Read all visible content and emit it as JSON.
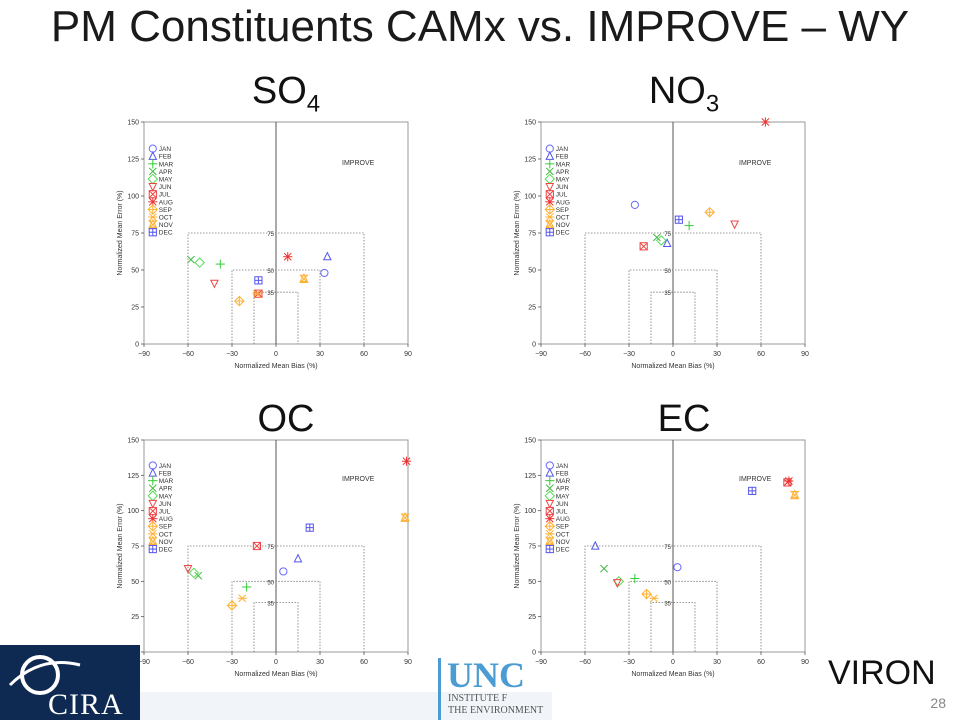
{
  "slide": {
    "title": "PM Constituents CAMx vs. IMPROVE – WY",
    "page_number": "28",
    "logos": {
      "cira": "CIRA",
      "unc": "UNC",
      "unc_sub1": "INSTITUTE F",
      "unc_sub2": "THE ENVIRONMENT",
      "environ": "VIRON"
    }
  },
  "months": [
    "JAN",
    "FEB",
    "MAR",
    "APR",
    "MAY",
    "JUN",
    "JUL",
    "AUG",
    "SEP",
    "OCT",
    "NOV",
    "DEC"
  ],
  "month_styles": [
    {
      "marker": "circle",
      "color": "#6a6aff"
    },
    {
      "marker": "triangle-up",
      "color": "#5555ee"
    },
    {
      "marker": "plus",
      "color": "#33cc33"
    },
    {
      "marker": "x",
      "color": "#44bb44"
    },
    {
      "marker": "diamond",
      "color": "#55dd55"
    },
    {
      "marker": "triangle-down",
      "color": "#ee4444"
    },
    {
      "marker": "boxed-x",
      "color": "#ee4444"
    },
    {
      "marker": "asterisk",
      "color": "#ee3333"
    },
    {
      "marker": "diamond-plus",
      "color": "#ffb030"
    },
    {
      "marker": "star",
      "color": "#ffb030"
    },
    {
      "marker": "hourglass",
      "color": "#ffb030"
    },
    {
      "marker": "boxed-plus",
      "color": "#5555ee"
    }
  ],
  "axis_text": {
    "xlabel": "Normalized Mean Bias (%)",
    "ylabel": "Normalized Mean Error (%)",
    "network": "IMPROVE",
    "xticks": [
      "−90",
      "−60",
      "−30",
      "0",
      "30",
      "60",
      "90"
    ],
    "yticks": [
      "0",
      "25",
      "50",
      "75",
      "100",
      "125",
      "150"
    ],
    "box_labels": [
      "75",
      "50",
      "35"
    ]
  },
  "chart_data": [
    {
      "type": "scatter",
      "panel_title": "SO4",
      "xlim": [
        -90,
        90
      ],
      "ylim": [
        0,
        150
      ],
      "xlabel": "Normalized Mean Bias (%)",
      "ylabel": "Normalized Mean Error (%)",
      "points": [
        {
          "month": "JAN",
          "x": 33,
          "y": 48
        },
        {
          "month": "FEB",
          "x": 35,
          "y": 59
        },
        {
          "month": "MAR",
          "x": -38,
          "y": 54
        },
        {
          "month": "APR",
          "x": -58,
          "y": 57
        },
        {
          "month": "MAY",
          "x": -52,
          "y": 55
        },
        {
          "month": "JUN",
          "x": -42,
          "y": 41
        },
        {
          "month": "JUL",
          "x": -12,
          "y": 34
        },
        {
          "month": "AUG",
          "x": 8,
          "y": 59
        },
        {
          "month": "SEP",
          "x": -25,
          "y": 29
        },
        {
          "month": "OCT",
          "x": -13,
          "y": 34
        },
        {
          "month": "NOV",
          "x": 19,
          "y": 44
        },
        {
          "month": "DEC",
          "x": -12,
          "y": 43
        }
      ]
    },
    {
      "type": "scatter",
      "panel_title": "NO3",
      "xlim": [
        -90,
        90
      ],
      "ylim": [
        0,
        150
      ],
      "xlabel": "Normalized Mean Bias (%)",
      "ylabel": "Normalized Mean Error (%)",
      "points": [
        {
          "month": "JAN",
          "x": -26,
          "y": 94
        },
        {
          "month": "FEB",
          "x": -4,
          "y": 68
        },
        {
          "month": "MAR",
          "x": 11,
          "y": 80
        },
        {
          "month": "APR",
          "x": -11,
          "y": 72
        },
        {
          "month": "MAY",
          "x": -8,
          "y": 70
        },
        {
          "month": "JUN",
          "x": 42,
          "y": 81
        },
        {
          "month": "JUL",
          "x": -20,
          "y": 66
        },
        {
          "month": "AUG",
          "x": 63,
          "y": 150
        },
        {
          "month": "SEP",
          "x": 25,
          "y": 89
        },
        {
          "month": "DEC",
          "x": 4,
          "y": 84
        }
      ]
    },
    {
      "type": "scatter",
      "panel_title": "OC",
      "xlim": [
        -90,
        90
      ],
      "ylim": [
        0,
        150
      ],
      "xlabel": "Normalized Mean Bias (%)",
      "ylabel": "Normalized Mean Error (%)",
      "points": [
        {
          "month": "JAN",
          "x": 5,
          "y": 57
        },
        {
          "month": "FEB",
          "x": 15,
          "y": 66
        },
        {
          "month": "MAR",
          "x": -20,
          "y": 46
        },
        {
          "month": "APR",
          "x": -53,
          "y": 54
        },
        {
          "month": "MAY",
          "x": -56,
          "y": 56
        },
        {
          "month": "JUN",
          "x": -60,
          "y": 59
        },
        {
          "month": "JUL",
          "x": -13,
          "y": 75
        },
        {
          "month": "AUG",
          "x": 89,
          "y": 135
        },
        {
          "month": "SEP",
          "x": -30,
          "y": 33
        },
        {
          "month": "OCT",
          "x": -23,
          "y": 38
        },
        {
          "month": "NOV",
          "x": 88,
          "y": 95
        },
        {
          "month": "DEC",
          "x": 23,
          "y": 88
        }
      ]
    },
    {
      "type": "scatter",
      "panel_title": "EC",
      "xlim": [
        -90,
        90
      ],
      "ylim": [
        0,
        150
      ],
      "xlabel": "Normalized Mean Bias (%)",
      "ylabel": "Normalized Mean Error (%)",
      "points": [
        {
          "month": "JAN",
          "x": 3,
          "y": 60
        },
        {
          "month": "FEB",
          "x": -53,
          "y": 75
        },
        {
          "month": "MAR",
          "x": -26,
          "y": 52
        },
        {
          "month": "APR",
          "x": -47,
          "y": 59
        },
        {
          "month": "MAY",
          "x": -37,
          "y": 50
        },
        {
          "month": "JUN",
          "x": -38,
          "y": 49
        },
        {
          "month": "JUL",
          "x": 78,
          "y": 120
        },
        {
          "month": "AUG",
          "x": 79,
          "y": 121
        },
        {
          "month": "SEP",
          "x": -18,
          "y": 41
        },
        {
          "month": "OCT",
          "x": -13,
          "y": 38
        },
        {
          "month": "NOV",
          "x": 83,
          "y": 111
        },
        {
          "month": "DEC",
          "x": 54,
          "y": 114
        }
      ]
    }
  ]
}
